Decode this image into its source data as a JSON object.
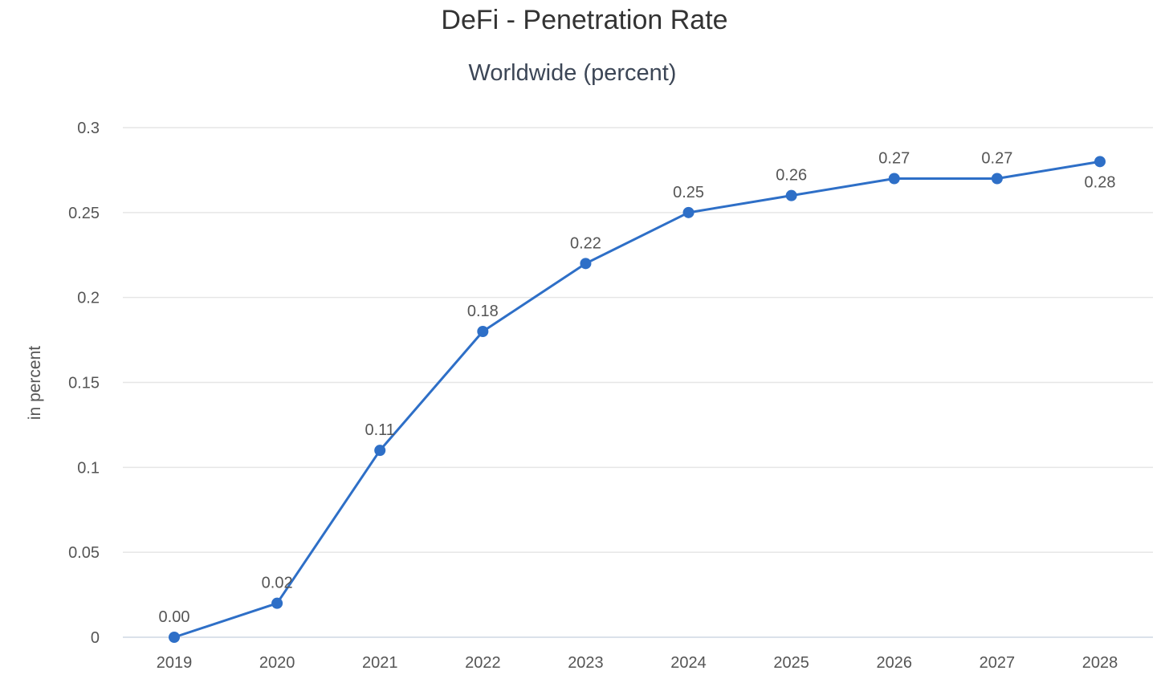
{
  "chart_data": {
    "type": "line",
    "title": "DeFi - Penetration Rate",
    "subtitle": "Worldwide (percent)",
    "xlabel": "",
    "ylabel": "in percent",
    "categories": [
      "2019",
      "2020",
      "2021",
      "2022",
      "2023",
      "2024",
      "2025",
      "2026",
      "2027",
      "2028"
    ],
    "series": [
      {
        "values": [
          0.0,
          0.02,
          0.11,
          0.18,
          0.22,
          0.25,
          0.26,
          0.27,
          0.27,
          0.28
        ],
        "labels": [
          "0.00",
          "0.02",
          "0.11",
          "0.18",
          "0.22",
          "0.25",
          "0.26",
          "0.27",
          "0.27",
          "0.28"
        ],
        "color": "#2e6fc7"
      }
    ],
    "yticks": [
      "0",
      "0.05",
      "0.1",
      "0.15",
      "0.2",
      "0.25",
      "0.3"
    ],
    "ylim": [
      0,
      0.3
    ],
    "grid": true,
    "legend": "none"
  }
}
